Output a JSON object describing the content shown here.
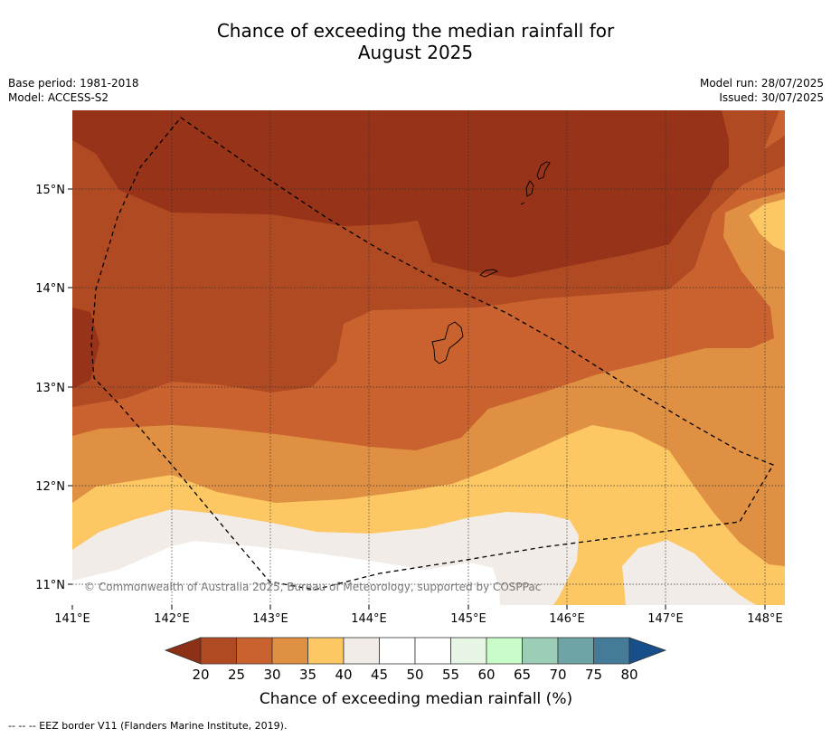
{
  "title": {
    "line1": "Chance of exceeding the median rainfall for",
    "line2": "August 2025"
  },
  "meta_left": {
    "base_period": "Base period: 1981-2018",
    "model": "Model: ACCESS-S2"
  },
  "meta_right": {
    "model_run": "Model run: 28/07/2025",
    "issued": "Issued: 30/07/2025"
  },
  "map": {
    "lon_labels": [
      "141°E",
      "142°E",
      "143°E",
      "144°E",
      "145°E",
      "146°E",
      "147°E",
      "148°E"
    ],
    "lat_labels": [
      "15°N",
      "14°N",
      "13°N",
      "12°N",
      "11°N"
    ],
    "copyright": "© Commonwealth of Australia 2025, Bureau of Meteorology, supported by COSPPac"
  },
  "colorbar": {
    "ticks": [
      "20",
      "25",
      "30",
      "35",
      "40",
      "45",
      "50",
      "55",
      "60",
      "65",
      "70",
      "75",
      "80"
    ],
    "label": "Chance of exceeding median rainfall (%)",
    "colors": {
      "below20": "#8c3018",
      "c20": "#b04a22",
      "c25": "#c9622e",
      "c30": "#df9042",
      "c35": "#fdc864",
      "c40": "#f1ece7",
      "c45": "#ffffff",
      "c50": "#ffffff",
      "c55": "#e7f5e5",
      "c60": "#c9fcc9",
      "c65": "#9ccdb7",
      "c70": "#6fa4a6",
      "c75": "#437b98",
      "above80": "#184f8a"
    }
  },
  "footer": "--  --  -- EEZ border V11 (Flanders Marine Institute, 2019)."
}
